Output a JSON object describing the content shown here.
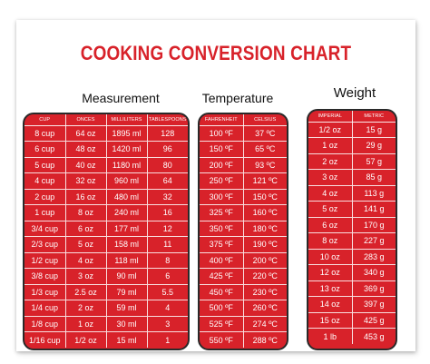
{
  "title": "COOKING CONVERSION CHART",
  "measurement": {
    "heading": "Measurement",
    "columns": [
      "CUP",
      "ONCES",
      "MILLILITERS",
      "TABLESPOONS"
    ],
    "rows": [
      [
        "8 cup",
        "64 oz",
        "1895 ml",
        "128"
      ],
      [
        "6 cup",
        "48 oz",
        "1420 ml",
        "96"
      ],
      [
        "5 cup",
        "40 oz",
        "1180 ml",
        "80"
      ],
      [
        "4 cup",
        "32 oz",
        "960 ml",
        "64"
      ],
      [
        "2 cup",
        "16 oz",
        "480 ml",
        "32"
      ],
      [
        "1 cup",
        "8 oz",
        "240 ml",
        "16"
      ],
      [
        "3/4 cup",
        "6 oz",
        "177 ml",
        "12"
      ],
      [
        "2/3 cup",
        "5 oz",
        "158 ml",
        "11"
      ],
      [
        "1/2 cup",
        "4 oz",
        "118 ml",
        "8"
      ],
      [
        "3/8 cup",
        "3 oz",
        "90 ml",
        "6"
      ],
      [
        "1/3 cup",
        "2.5 oz",
        "79 ml",
        "5.5"
      ],
      [
        "1/4 cup",
        "2 oz",
        "59 ml",
        "4"
      ],
      [
        "1/8 cup",
        "1 oz",
        "30 ml",
        "3"
      ],
      [
        "1/16 cup",
        "1/2 oz",
        "15 ml",
        "1"
      ]
    ]
  },
  "temperature": {
    "heading": "Temperature",
    "columns": [
      "FAHRENHEIT",
      "CELSIUS"
    ],
    "rows": [
      [
        "100 ºF",
        "37 ºC"
      ],
      [
        "150 ºF",
        "65 ºC"
      ],
      [
        "200 ºF",
        "93 ºC"
      ],
      [
        "250 ºF",
        "121 ºC"
      ],
      [
        "300 ºF",
        "150 ºC"
      ],
      [
        "325 ºF",
        "160 ºC"
      ],
      [
        "350 ºF",
        "180 ºC"
      ],
      [
        "375 ºF",
        "190 ºC"
      ],
      [
        "400 ºF",
        "200 ºC"
      ],
      [
        "425 ºF",
        "220 ºC"
      ],
      [
        "450 ºF",
        "230 ºC"
      ],
      [
        "500 ºF",
        "260 ºC"
      ],
      [
        "525 ºF",
        "274 ºC"
      ],
      [
        "550 ºF",
        "288 ºC"
      ]
    ]
  },
  "weight": {
    "heading": "Weight",
    "columns": [
      "IMPERIAL",
      "METRIC"
    ],
    "rows": [
      [
        "1/2 oz",
        "15 g"
      ],
      [
        "1 oz",
        "29 g"
      ],
      [
        "2 oz",
        "57 g"
      ],
      [
        "3 oz",
        "85 g"
      ],
      [
        "4 oz",
        "113 g"
      ],
      [
        "5 oz",
        "141 g"
      ],
      [
        "6 oz",
        "170 g"
      ],
      [
        "8 oz",
        "227 g"
      ],
      [
        "10 oz",
        "283 g"
      ],
      [
        "12 oz",
        "340 g"
      ],
      [
        "13 oz",
        "369 g"
      ],
      [
        "14 oz",
        "397 g"
      ],
      [
        "15 oz",
        "425 g"
      ],
      [
        "1 lb",
        "453 g"
      ]
    ]
  },
  "colors": {
    "accent": "#d8222a",
    "card_border": "#2a2a2a",
    "text_on_card": "#ffffff"
  }
}
